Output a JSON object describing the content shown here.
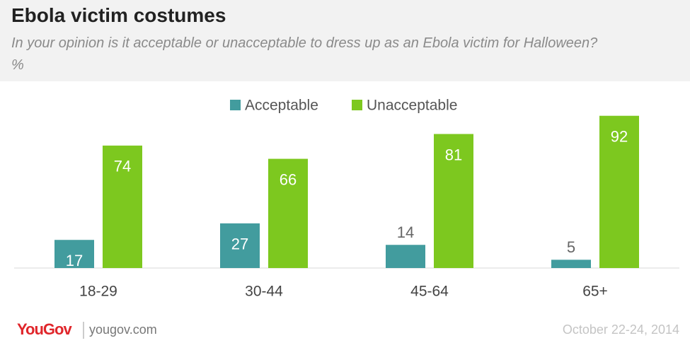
{
  "chart_data": {
    "type": "bar",
    "title": "Ebola victim costumes",
    "subtitle": "In your opinion is it acceptable or unacceptable to dress up as an Ebola victim for Halloween? %",
    "categories": [
      "18-29",
      "30-44",
      "45-64",
      "65+"
    ],
    "series": [
      {
        "name": "Acceptable",
        "color": "#429c9e",
        "values": [
          17,
          27,
          14,
          5
        ]
      },
      {
        "name": "Unacceptable",
        "color": "#7dc81f",
        "values": [
          74,
          66,
          81,
          92
        ]
      }
    ],
    "ylim": [
      0,
      100
    ],
    "brand": "YouGov",
    "website": "yougov.com",
    "date": "October 22-24, 2014"
  }
}
